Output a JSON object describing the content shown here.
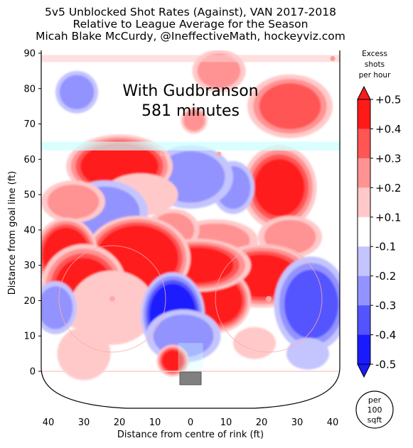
{
  "chart_data": {
    "type": "heatmap",
    "title": [
      "5v5 Unblocked Shot Rates (Against), VAN 2017-2018",
      "Relative to League Average for the Season",
      "Micah Blake McCurdy, @IneffectiveMath, hockeyviz.com"
    ],
    "annotation": [
      "With Gudbranson",
      "581 minutes"
    ],
    "xlabel": "Distance from centre of rink (ft)",
    "ylabel": "Distance from goal line (ft)",
    "x_ticks": [
      "40",
      "30",
      "20",
      "10",
      "0",
      "10",
      "20",
      "30",
      "40"
    ],
    "y_ticks": [
      "0",
      "10",
      "20",
      "30",
      "40",
      "50",
      "60",
      "70",
      "80",
      "90"
    ],
    "xlim": [
      -42,
      42
    ],
    "ylim": [
      -11,
      90
    ],
    "colorbar": {
      "title": [
        "Excess",
        "shots",
        "per hour"
      ],
      "levels": [
        "+0.5",
        "+0.4",
        "+0.3",
        "+0.2",
        "+0.1",
        "-0.1",
        "-0.2",
        "-0.3",
        "-0.4",
        "-0.5"
      ],
      "colors": [
        "#ff1a1a",
        "#ff5555",
        "#ff9393",
        "#ffc9c9",
        "#ffffff",
        "#c4c4ff",
        "#9393ff",
        "#5454ff",
        "#1a1aff"
      ]
    },
    "unit_badge": [
      "per",
      "100",
      "sqft"
    ],
    "blobs": [
      {
        "x": 28,
        "y": 75,
        "rx": 8,
        "ry": 6,
        "v": 0.3
      },
      {
        "x": 8,
        "y": 85,
        "rx": 5,
        "ry": 4,
        "v": 0.15
      },
      {
        "x": -32,
        "y": 79,
        "rx": 4,
        "ry": 4,
        "v": -0.15
      },
      {
        "x": 1,
        "y": 71,
        "rx": 2.5,
        "ry": 2.5,
        "v": 0.15
      },
      {
        "x": 25,
        "y": 52,
        "rx": 7,
        "ry": 8,
        "v": 0.42
      },
      {
        "x": 28,
        "y": 38,
        "rx": 6,
        "ry": 4,
        "v": 0.15
      },
      {
        "x": 12,
        "y": 52,
        "rx": 4,
        "ry": 5,
        "v": -0.2
      },
      {
        "x": 0,
        "y": 55,
        "rx": 8,
        "ry": 6,
        "v": -0.15
      },
      {
        "x": -20,
        "y": 58,
        "rx": 10,
        "ry": 6,
        "v": 0.45
      },
      {
        "x": -14,
        "y": 50,
        "rx": 7,
        "ry": 4,
        "v": 0.12
      },
      {
        "x": -24,
        "y": 45,
        "rx": 8,
        "ry": 6,
        "v": -0.15
      },
      {
        "x": -33,
        "y": 48,
        "rx": 6,
        "ry": 4,
        "v": 0.2
      },
      {
        "x": 7,
        "y": 37,
        "rx": 8,
        "ry": 4,
        "v": 0.15
      },
      {
        "x": -5,
        "y": 40,
        "rx": 5,
        "ry": 4,
        "v": 0.15
      },
      {
        "x": 20,
        "y": 27,
        "rx": 10,
        "ry": 6,
        "v": 0.4
      },
      {
        "x": 8,
        "y": 20,
        "rx": 6,
        "ry": 6,
        "v": 0.5
      },
      {
        "x": 2,
        "y": 30,
        "rx": 10,
        "ry": 5,
        "v": 0.35
      },
      {
        "x": -15,
        "y": 32,
        "rx": 10,
        "ry": 8,
        "v": 0.55
      },
      {
        "x": -35,
        "y": 33,
        "rx": 6,
        "ry": 7,
        "v": 0.45
      },
      {
        "x": -30,
        "y": 24,
        "rx": 8,
        "ry": 8,
        "v": 0.35
      },
      {
        "x": -22,
        "y": 18,
        "rx": 8,
        "ry": 7,
        "v": 0.12
      },
      {
        "x": -5,
        "y": 16,
        "rx": 6,
        "ry": 8,
        "v": -0.52
      },
      {
        "x": -2,
        "y": 10,
        "rx": 7,
        "ry": 5,
        "v": -0.2
      },
      {
        "x": 34,
        "y": 19,
        "rx": 7,
        "ry": 9,
        "v": -0.25
      },
      {
        "x": -38,
        "y": 18,
        "rx": 4,
        "ry": 5,
        "v": -0.15
      },
      {
        "x": -5,
        "y": 3,
        "rx": 3,
        "ry": 3,
        "v": 0.4
      },
      {
        "x": 18,
        "y": 8,
        "rx": 4,
        "ry": 3,
        "v": 0.12
      },
      {
        "x": -30,
        "y": 5,
        "rx": 5,
        "ry": 5,
        "v": 0.12
      },
      {
        "x": 33,
        "y": 5,
        "rx": 4,
        "ry": 3,
        "v": -0.12
      }
    ]
  }
}
